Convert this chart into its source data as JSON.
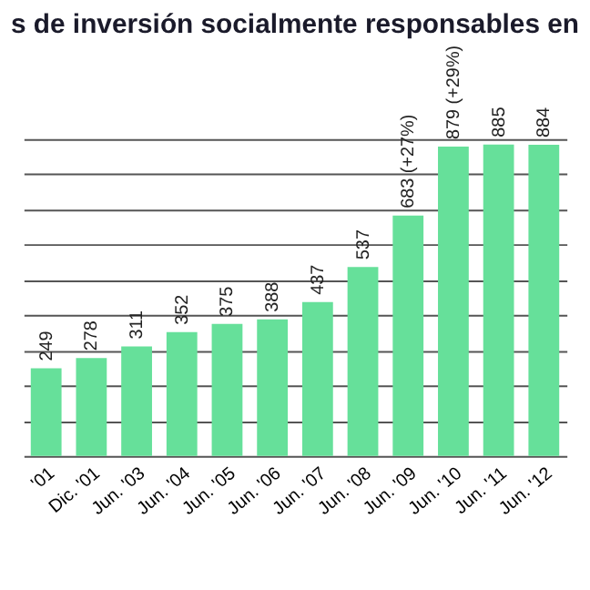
{
  "chart_data": {
    "type": "bar",
    "title": "s de inversión socialmente responsables en",
    "categories": [
      "'01",
      "Dic. '01",
      "Jun. '03",
      "Jun. '04",
      "Jun. '05",
      "Jun. '06",
      "Jun. '07",
      "Jun. '08",
      "Jun. '09",
      "Jun. '10",
      "Jun. '11",
      "Jun. '12"
    ],
    "values": [
      249,
      278,
      311,
      352,
      375,
      388,
      437,
      537,
      683,
      879,
      885,
      884
    ],
    "value_labels": [
      "249",
      "278",
      "311",
      "352",
      "375",
      "388",
      "437",
      "537",
      "683 (+27%)",
      "879 (+29%)",
      "885",
      "884"
    ],
    "color": "#66e09a",
    "grid": "y",
    "tick_labels": "x"
  }
}
